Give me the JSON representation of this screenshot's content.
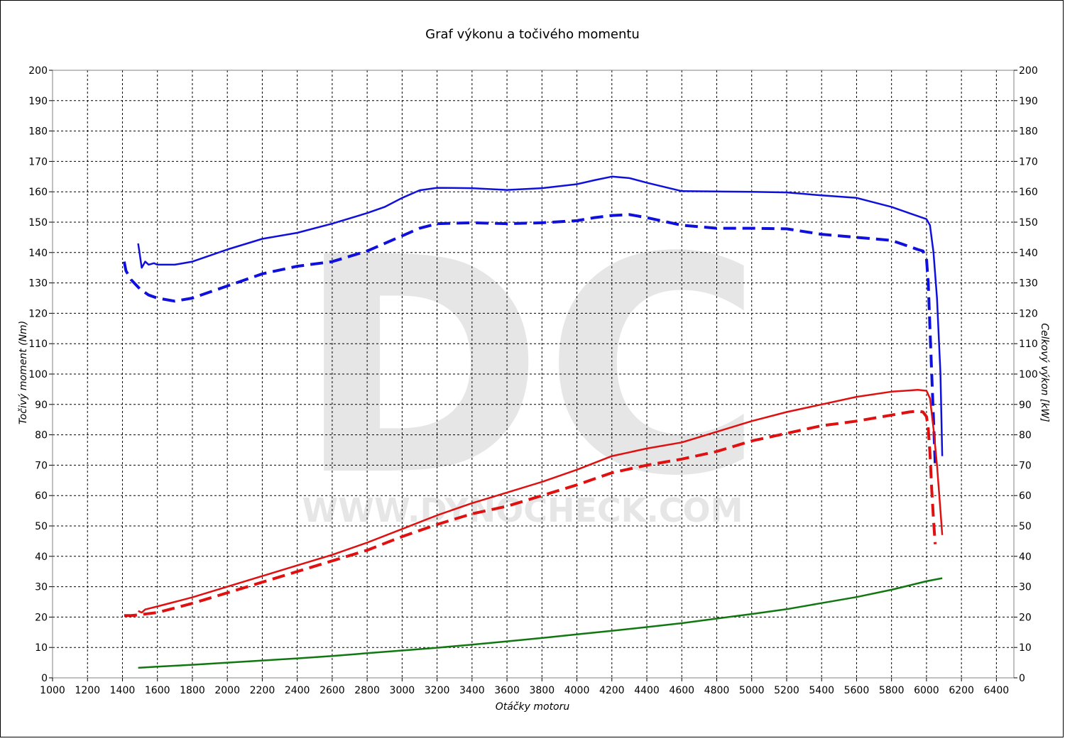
{
  "chart_data": {
    "type": "line",
    "title": "Graf výkonu a točivého momentu",
    "xlabel": "Otáčky motoru",
    "ylabel_left": "Točivý moment (Nm)",
    "ylabel_right": "Celkový výkon [kW]",
    "xlim": [
      1000,
      6500
    ],
    "ylim": [
      0,
      200
    ],
    "x_ticks": [
      1000,
      1200,
      1400,
      1600,
      1800,
      2000,
      2200,
      2400,
      2600,
      2800,
      3000,
      3200,
      3400,
      3600,
      3800,
      4000,
      4200,
      4400,
      4600,
      4800,
      5000,
      5200,
      5400,
      5600,
      5800,
      6000,
      6200,
      6400
    ],
    "y_ticks": [
      0,
      10,
      20,
      30,
      40,
      50,
      60,
      70,
      80,
      90,
      100,
      110,
      120,
      130,
      140,
      150,
      160,
      170,
      180,
      190,
      200
    ],
    "grid": true,
    "watermark": {
      "logo": "DC",
      "url": "WWW.DYNOCHECK.COM"
    },
    "series": [
      {
        "axis": "left",
        "color": "#1010dd",
        "dash": "solid",
        "x": [
          1490,
          1510,
          1530,
          1550,
          1580,
          1600,
          1700,
          1800,
          1900,
          2000,
          2200,
          2400,
          2600,
          2800,
          2900,
          3000,
          3100,
          3200,
          3400,
          3600,
          3800,
          4000,
          4100,
          4200,
          4300,
          4400,
          4600,
          4800,
          5000,
          5200,
          5400,
          5600,
          5800,
          5900,
          6000,
          6020,
          6040,
          6060,
          6080,
          6090
        ],
        "y": [
          143,
          135,
          137,
          136,
          136.5,
          136,
          136,
          137,
          139,
          141,
          144.5,
          146.5,
          149.5,
          153,
          155,
          158,
          160.5,
          161.3,
          161.2,
          160.6,
          161.2,
          162.5,
          163.8,
          165,
          164.5,
          163,
          160.2,
          160.1,
          160,
          159.8,
          158.8,
          158,
          155,
          153,
          151,
          149,
          140,
          125,
          100,
          73
        ]
      },
      {
        "axis": "left",
        "color": "#1010dd",
        "dash": "dashed",
        "x": [
          1410,
          1420,
          1450,
          1500,
          1550,
          1600,
          1700,
          1800,
          1900,
          2000,
          2200,
          2400,
          2600,
          2800,
          3000,
          3100,
          3200,
          3400,
          3600,
          3800,
          4000,
          4100,
          4200,
          4300,
          4400,
          4600,
          4800,
          5000,
          5200,
          5400,
          5600,
          5800,
          5900,
          5950,
          5980,
          6000,
          6010,
          6020,
          6030,
          6040,
          6050
        ],
        "y": [
          137,
          134,
          131,
          128,
          126,
          125,
          124,
          125,
          127,
          129,
          133,
          135.5,
          137,
          140.5,
          145.5,
          148,
          149.5,
          149.8,
          149.5,
          149.8,
          150.5,
          151.5,
          152.2,
          152.5,
          151.5,
          149,
          148,
          148,
          147.8,
          146,
          145,
          144,
          142,
          141,
          140.5,
          138,
          130,
          115,
          100,
          85,
          70
        ]
      },
      {
        "axis": "right",
        "color": "#e01010",
        "dash": "solid",
        "x": [
          1490,
          1510,
          1530,
          1550,
          1600,
          1700,
          1800,
          2000,
          2200,
          2400,
          2600,
          2800,
          3000,
          3200,
          3400,
          3600,
          3800,
          4000,
          4200,
          4400,
          4600,
          4800,
          5000,
          5200,
          5400,
          5600,
          5800,
          5950,
          6000,
          6020,
          6040,
          6060,
          6080,
          6090
        ],
        "y": [
          22,
          21.5,
          22.5,
          22.8,
          23.5,
          25,
          26.5,
          30,
          33.5,
          37,
          40.5,
          44.5,
          49,
          53.5,
          57.5,
          61,
          64.5,
          68.5,
          73,
          75.5,
          77.5,
          81,
          84.5,
          87.5,
          90,
          92.5,
          94.2,
          94.8,
          94.5,
          92,
          82,
          70,
          55,
          47
        ]
      },
      {
        "axis": "right",
        "color": "#e01010",
        "dash": "dashed",
        "x": [
          1410,
          1450,
          1500,
          1600,
          1700,
          1800,
          2000,
          2200,
          2400,
          2600,
          2800,
          3000,
          3200,
          3400,
          3600,
          3800,
          4000,
          4200,
          4400,
          4600,
          4800,
          5000,
          5200,
          5400,
          5600,
          5800,
          5900,
          5950,
          5980,
          6000,
          6010,
          6020,
          6030,
          6040,
          6050
        ],
        "y": [
          20.5,
          20.5,
          20.8,
          21.5,
          23,
          24.5,
          28,
          31.5,
          35,
          38.5,
          42,
          46.5,
          50.5,
          54,
          56.5,
          60,
          63.5,
          67.5,
          70,
          72,
          74.5,
          78,
          80.5,
          83,
          84.5,
          86.5,
          87.5,
          87.8,
          87.5,
          86,
          82,
          74,
          62,
          52,
          44
        ]
      },
      {
        "axis": "right",
        "color": "#117711",
        "dash": "solid",
        "x": [
          1490,
          1600,
          1800,
          2000,
          2200,
          2400,
          2600,
          2800,
          3000,
          3200,
          3400,
          3600,
          3800,
          4000,
          4200,
          4400,
          4600,
          4800,
          5000,
          5200,
          5400,
          5600,
          5800,
          6000,
          6090
        ],
        "y": [
          3.3,
          3.7,
          4.3,
          5,
          5.7,
          6.4,
          7.2,
          8.1,
          9,
          9.9,
          10.9,
          12,
          13.1,
          14.3,
          15.5,
          16.7,
          18,
          19.5,
          21,
          22.6,
          24.6,
          26.6,
          29,
          31.8,
          32.8
        ]
      }
    ]
  }
}
